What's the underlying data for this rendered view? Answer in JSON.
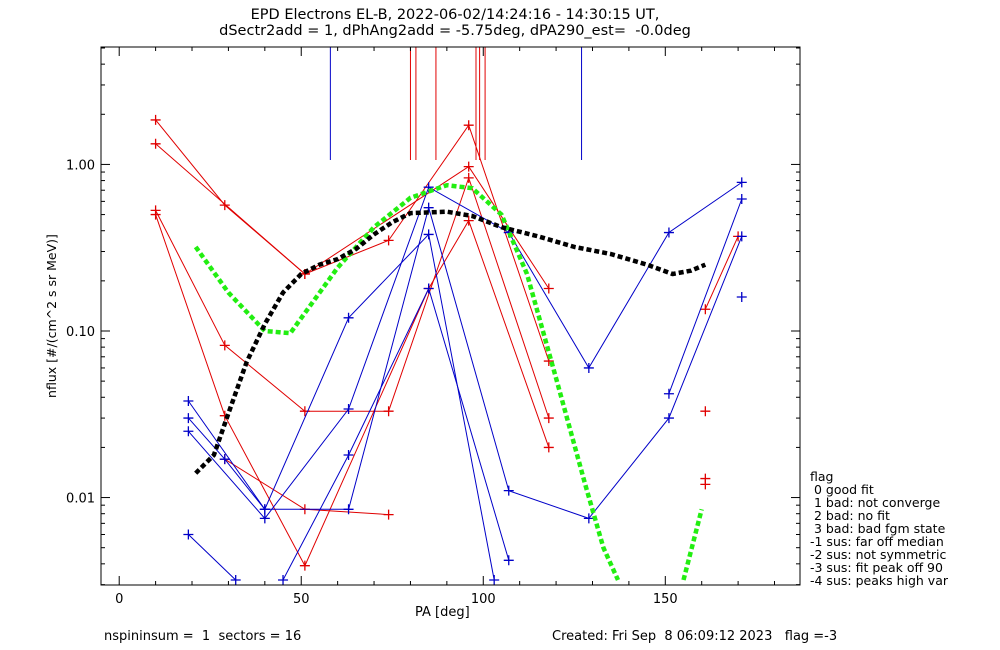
{
  "title_line1": "EPD Electrons EL-B, 2022-06-02/14:24:16 - 14:30:15 UT,",
  "title_line2": "dSectr2add = 1, dPhAng2add = -5.75deg, dPA290_est=  -0.0deg",
  "footer_left": "nspininsum =  1  sectors = 16",
  "footer_right": "Created: Fri Sep  8 06:09:12 2023   flag =-3",
  "legend": {
    "title": "flag",
    "items": [
      " 0 good fit",
      " 1 bad: not converge",
      " 2 bad: no fit",
      " 3 bad: bad fgm state",
      "-1 sus: far off median",
      "-2 sus: not symmetric",
      "-3 sus: fit peak off 90",
      "-4 sus: peaks high var"
    ]
  },
  "chart_data": {
    "type": "line",
    "xlabel": "PA [deg]",
    "ylabel": "nflux [#/(cm^2 s sr MeV)]",
    "xlim": [
      -5,
      187
    ],
    "ylim_log10": [
      -2.525,
      0.705
    ],
    "y_scale": "log",
    "xticks": [
      0,
      50,
      100,
      150
    ],
    "yticks": [
      0.01,
      0.1,
      1.0
    ],
    "ytick_labels": [
      "0.01",
      "0.10",
      "1.00"
    ],
    "colors": {
      "red": "#e00000",
      "blue": "#0000c8",
      "green": "#22ee11",
      "black": "#000000"
    },
    "vertical_markers": [
      {
        "x": 58,
        "color": "blue"
      },
      {
        "x": 80,
        "color": "red"
      },
      {
        "x": 81.5,
        "color": "red"
      },
      {
        "x": 87,
        "color": "red"
      },
      {
        "x": 98,
        "color": "red"
      },
      {
        "x": 99,
        "color": "red"
      },
      {
        "x": 100.5,
        "color": "red"
      },
      {
        "x": 127,
        "color": "blue"
      }
    ],
    "series": [
      {
        "color": "red",
        "points": [
          [
            10,
            1.85
          ],
          [
            29,
            0.57
          ],
          [
            51,
            0.22
          ],
          [
            96,
            0.97
          ],
          [
            118,
            0.18
          ]
        ]
      },
      {
        "color": "red",
        "points": [
          [
            10,
            1.33
          ],
          [
            51,
            0.22
          ],
          [
            74,
            0.35
          ],
          [
            96,
            1.72
          ],
          [
            118,
            0.066
          ]
        ]
      },
      {
        "color": "red",
        "points": [
          [
            10,
            0.53
          ],
          [
            29,
            0.082
          ],
          [
            51,
            0.033
          ],
          [
            74,
            0.033
          ],
          [
            96,
            0.83
          ],
          [
            118,
            0.03
          ]
        ]
      },
      {
        "color": "red",
        "points": [
          [
            10,
            0.5
          ],
          [
            29,
            0.031
          ],
          [
            51,
            0.0039
          ],
          [
            85,
            0.18
          ],
          [
            96,
            0.46
          ],
          [
            118,
            0.02
          ]
        ]
      },
      {
        "color": "red",
        "points": [
          [
            29,
            0.017
          ],
          [
            51,
            0.0085
          ],
          [
            74,
            0.0079
          ]
        ]
      },
      {
        "color": "red",
        "points": [
          [
            161,
            0.033
          ]
        ]
      },
      {
        "color": "red",
        "points": [
          [
            161,
            0.013
          ]
        ]
      },
      {
        "color": "red",
        "points": [
          [
            161,
            0.012
          ]
        ]
      },
      {
        "color": "red",
        "points": [
          [
            161,
            0.135
          ],
          [
            170,
            0.37
          ]
        ]
      },
      {
        "color": "blue",
        "points": [
          [
            19,
            0.038
          ],
          [
            40,
            0.0085
          ],
          [
            63,
            0.0085
          ],
          [
            85,
            0.55
          ],
          [
            107,
            0.011
          ],
          [
            129,
            0.0075
          ],
          [
            151,
            0.03
          ],
          [
            171,
            0.37
          ]
        ]
      },
      {
        "color": "blue",
        "points": [
          [
            19,
            0.025
          ],
          [
            40,
            0.0075
          ],
          [
            63,
            0.034
          ],
          [
            85,
            0.73
          ],
          [
            107,
            0.39
          ],
          [
            129,
            0.06
          ],
          [
            151,
            0.39
          ],
          [
            171,
            0.78
          ]
        ]
      },
      {
        "color": "blue",
        "points": [
          [
            19,
            0.03
          ],
          [
            29,
            0.017
          ],
          [
            40,
            0.0085
          ],
          [
            63,
            0.12
          ],
          [
            85,
            0.38
          ],
          [
            103,
            0.0032
          ]
        ]
      },
      {
        "color": "blue",
        "points": [
          [
            19,
            0.006
          ],
          [
            32,
            0.0032
          ]
        ]
      },
      {
        "color": "blue",
        "points": [
          [
            45,
            0.0032
          ],
          [
            63,
            0.018
          ],
          [
            85,
            0.18
          ],
          [
            107,
            0.0042
          ]
        ]
      },
      {
        "color": "blue",
        "points": [
          [
            151,
            0.042
          ],
          [
            171,
            0.62
          ]
        ]
      },
      {
        "color": "blue",
        "points": [
          [
            171,
            0.16
          ]
        ]
      }
    ],
    "fit_curves": [
      {
        "color": "green",
        "style": "dashed",
        "points": [
          [
            21,
            0.32
          ],
          [
            30,
            0.17
          ],
          [
            40,
            0.1
          ],
          [
            47,
            0.097
          ],
          [
            60,
            0.24
          ],
          [
            70,
            0.42
          ],
          [
            80,
            0.63
          ],
          [
            90,
            0.75
          ],
          [
            97,
            0.72
          ],
          [
            105,
            0.5
          ],
          [
            112,
            0.22
          ],
          [
            120,
            0.052
          ],
          [
            128,
            0.012
          ],
          [
            133,
            0.005
          ],
          [
            137,
            0.0032
          ]
        ]
      },
      {
        "color": "green",
        "style": "dashed",
        "points": [
          [
            155,
            0.0032
          ],
          [
            160,
            0.0085
          ]
        ]
      },
      {
        "color": "black",
        "style": "dashed",
        "points": [
          [
            21,
            0.014
          ],
          [
            26,
            0.018
          ],
          [
            30,
            0.032
          ],
          [
            35,
            0.065
          ],
          [
            40,
            0.11
          ],
          [
            45,
            0.17
          ],
          [
            50,
            0.22
          ],
          [
            55,
            0.25
          ],
          [
            60,
            0.27
          ],
          [
            65,
            0.31
          ],
          [
            70,
            0.38
          ],
          [
            75,
            0.45
          ],
          [
            80,
            0.51
          ],
          [
            90,
            0.52
          ],
          [
            97,
            0.49
          ],
          [
            105,
            0.42
          ],
          [
            115,
            0.37
          ],
          [
            125,
            0.32
          ],
          [
            135,
            0.29
          ],
          [
            145,
            0.25
          ],
          [
            152,
            0.22
          ],
          [
            157,
            0.23
          ],
          [
            161,
            0.25
          ]
        ]
      }
    ]
  }
}
